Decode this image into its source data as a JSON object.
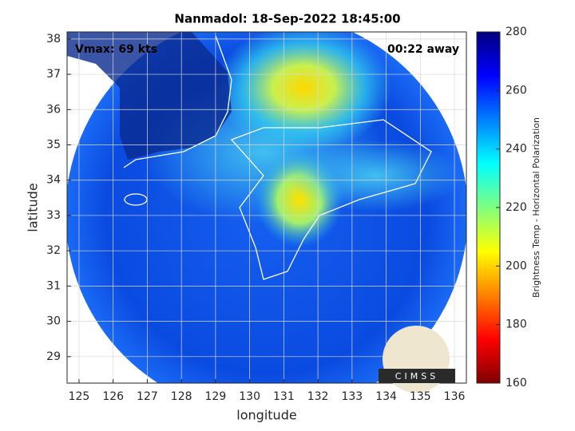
{
  "chart_data": {
    "type": "map",
    "title": "Nanmadol: 18-Sep-2022 18:45:00",
    "xlabel": "longitude",
    "ylabel": "latitude",
    "xlim": [
      124.65,
      136.35
    ],
    "xticks": [
      125,
      126,
      127,
      128,
      129,
      130,
      131,
      132,
      133,
      134,
      135,
      136
    ],
    "ylim": [
      28.25,
      38.2
    ],
    "yticks": [
      29,
      30,
      31,
      32,
      33,
      34,
      35,
      36,
      37,
      38
    ],
    "grid": true,
    "annotations": [
      "Vmax: 69 kts",
      "00:22 away"
    ],
    "logo": "CIMSS",
    "colorbar": {
      "label": "Brightness Temp - Horizontal Polarization",
      "clim": [
        160,
        280
      ],
      "ticks": [
        160,
        180,
        200,
        220,
        240,
        260,
        280
      ],
      "colormap": [
        "#800000",
        "#ff0000",
        "#ff8000",
        "#ffff00",
        "#80ff80",
        "#00ffff",
        "#0080ff",
        "#0000ff",
        "#000080"
      ]
    }
  }
}
